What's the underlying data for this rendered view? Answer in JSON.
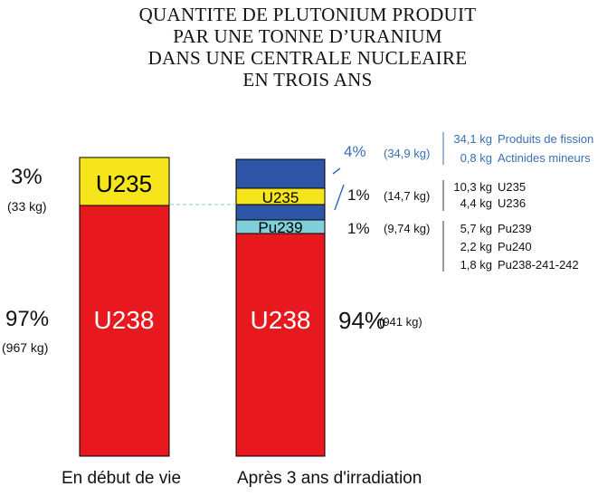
{
  "title_lines": [
    "QUANTITE DE PLUTONIUM PRODUIT",
    "PAR UNE TONNE D’URANIUM",
    "DANS UNE CENTRALE NUCLEAIRE",
    "EN TROIS ANS"
  ],
  "colors": {
    "u238": "#e8191e",
    "u235": "#f6e51a",
    "pu239": "#7fd0db",
    "fission": "#2e55a8",
    "accent_text": "#3a6fb5"
  },
  "chart_data": {
    "type": "bar",
    "categories": [
      "En début de vie",
      "Après 3 ans d'irradiation"
    ],
    "total_kg": 1000,
    "series": [
      {
        "name": "U238",
        "values": [
          967,
          941
        ]
      },
      {
        "name": "U235",
        "values": [
          33,
          14.7
        ]
      },
      {
        "name": "Pu239",
        "values": [
          0,
          9.74
        ]
      },
      {
        "name": "Produits de fission / Actinides mineurs",
        "values": [
          0,
          34.9
        ]
      }
    ]
  },
  "bar1": {
    "u235_label": "U235",
    "u238_label": "U238",
    "pct_u235": "3%",
    "kg_u235": "(33 kg)",
    "pct_u238": "97%",
    "kg_u238": "(967 kg)",
    "caption": "En début de vie"
  },
  "bar2": {
    "u235_label": "U235",
    "pu_label": "Pu239",
    "u238_label": "U238",
    "pct_u238": "94%",
    "kg_u238": "(941 kg)",
    "caption": "Après 3 ans d'irradiation"
  },
  "annotations": {
    "fission": {
      "pct": "4%",
      "kg": "(34,9 kg)",
      "lines": [
        {
          "qty": "34,1 kg",
          "label": "Produits de fission"
        },
        {
          "qty": "0,8 kg",
          "label": "Actinides mineurs"
        }
      ]
    },
    "uranium": {
      "pct": "1%",
      "kg": "(14,7 kg)",
      "lines": [
        {
          "qty": "10,3 kg",
          "label": "U235"
        },
        {
          "qty": "4,4 kg",
          "label": "U236"
        }
      ]
    },
    "plutonium": {
      "pct": "1%",
      "kg": "(9,74 kg)",
      "lines": [
        {
          "qty": "5,7 kg",
          "label": "Pu239"
        },
        {
          "qty": "2,2 kg",
          "label": "Pu240"
        },
        {
          "qty": "1,8 kg",
          "label": "Pu238-241-242"
        }
      ]
    }
  }
}
